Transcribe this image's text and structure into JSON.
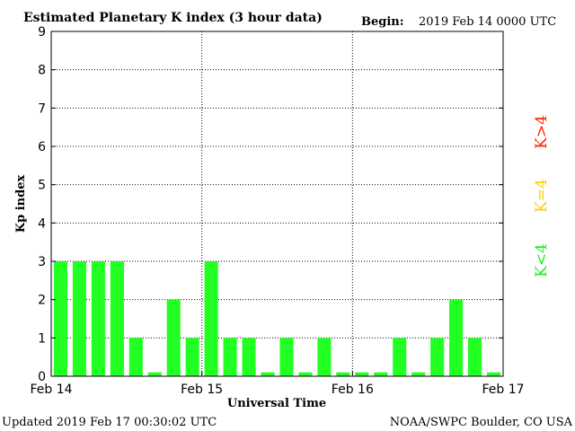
{
  "chart_data": {
    "type": "bar",
    "title": "Estimated Planetary K index (3 hour data)",
    "begin_label": "Begin:",
    "begin_value": "2019 Feb 14 0000 UTC",
    "ylabel": "Kp index",
    "xlabel": "Universal Time",
    "ylim": [
      0,
      9
    ],
    "yticks": [
      "0",
      "1",
      "2",
      "3",
      "4",
      "5",
      "6",
      "7",
      "8",
      "9"
    ],
    "xticks": [
      "Feb 14",
      "Feb 15",
      "Feb 16",
      "Feb 17"
    ],
    "grid": true,
    "values": [
      3,
      3,
      3,
      3,
      1,
      0.1,
      2,
      1,
      3,
      1,
      1,
      0.1,
      1,
      0.1,
      1,
      0.1,
      0.1,
      0.1,
      1,
      0.1,
      1,
      2,
      1,
      0.1
    ],
    "bar_color": "#22ff22",
    "legend": [
      {
        "label": "K<4",
        "color": "#22ee22"
      },
      {
        "label": "K=4",
        "color": "#ffcc00"
      },
      {
        "label": "K>4",
        "color": "#ff2200"
      }
    ]
  },
  "footer": {
    "updated": "Updated 2019 Feb 17 00:30:02 UTC",
    "credit": "NOAA/SWPC Boulder, CO USA"
  }
}
